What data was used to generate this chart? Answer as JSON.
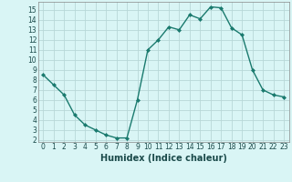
{
  "x": [
    0,
    1,
    2,
    3,
    4,
    5,
    6,
    7,
    8,
    9,
    10,
    11,
    12,
    13,
    14,
    15,
    16,
    17,
    18,
    19,
    20,
    21,
    22,
    23
  ],
  "y": [
    8.5,
    7.5,
    6.5,
    4.5,
    3.5,
    3.0,
    2.5,
    2.2,
    2.2,
    6.0,
    11.0,
    12.0,
    13.3,
    13.0,
    14.5,
    14.1,
    15.3,
    15.2,
    13.2,
    12.5,
    9.0,
    7.0,
    6.5,
    6.3
  ],
  "line_color": "#1a7a6e",
  "marker": "D",
  "marker_size": 2.0,
  "bg_color": "#d9f5f5",
  "grid_color": "#b8d8d8",
  "xlabel": "Humidex (Indice chaleur)",
  "xlabel_fontsize": 7,
  "xlim": [
    -0.5,
    23.5
  ],
  "ylim": [
    1.8,
    15.8
  ],
  "yticks": [
    2,
    3,
    4,
    5,
    6,
    7,
    8,
    9,
    10,
    11,
    12,
    13,
    14,
    15
  ],
  "xticks": [
    0,
    1,
    2,
    3,
    4,
    5,
    6,
    7,
    8,
    9,
    10,
    11,
    12,
    13,
    14,
    15,
    16,
    17,
    18,
    19,
    20,
    21,
    22,
    23
  ],
  "tick_fontsize": 5.5,
  "line_width": 1.0
}
